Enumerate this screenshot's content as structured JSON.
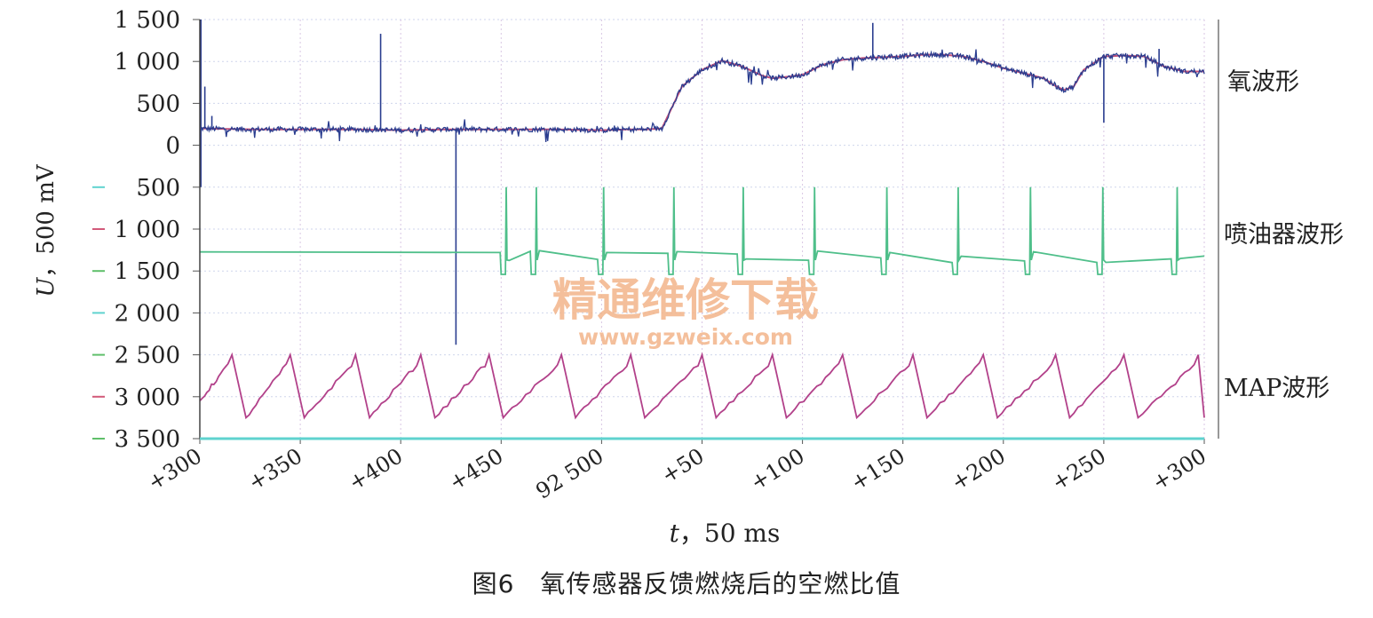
{
  "chart_data": {
    "type": "line",
    "title": "",
    "xlabel_var": "t",
    "xlabel_unit": "，50 ms",
    "ylabel_var": "U",
    "ylabel_unit": "，500 mV",
    "ylim": [
      -3500,
      1500
    ],
    "y_ticks": [
      {
        "value": 1500,
        "label": "1 500",
        "marker": false
      },
      {
        "value": 1000,
        "label": "1 000",
        "marker": false
      },
      {
        "value": 500,
        "label": "500",
        "marker": false
      },
      {
        "value": 0,
        "label": "0",
        "marker": false
      },
      {
        "value": -500,
        "label": "500",
        "marker": true,
        "marker_color": "#5fd3cf"
      },
      {
        "value": -1000,
        "label": "1 000",
        "marker": true,
        "marker_color": "#d25a7a"
      },
      {
        "value": -1500,
        "label": "1 500",
        "marker": true,
        "marker_color": "#5fbf6a"
      },
      {
        "value": -2000,
        "label": "2 000",
        "marker": true,
        "marker_color": "#5fd3cf"
      },
      {
        "value": -2500,
        "label": "2 500",
        "marker": true,
        "marker_color": "#5fbf6a"
      },
      {
        "value": -3000,
        "label": "3 000",
        "marker": true,
        "marker_color": "#d25a7a"
      },
      {
        "value": -3500,
        "label": "3 500",
        "marker": true,
        "marker_color": "#5fbf6a"
      }
    ],
    "x_ticks": [
      "+300",
      "+350",
      "+400",
      "+450",
      "92 500",
      "+50",
      "+100",
      "+150",
      "+200",
      "+250",
      "+300"
    ],
    "grid": true,
    "series": [
      {
        "name": "氧波形",
        "color": "#2a3d8f",
        "smooth_color": "#c2507a",
        "x": [
          0,
          0.05,
          0.1,
          0.15,
          0.2,
          0.25,
          0.3,
          0.35,
          0.4,
          0.43,
          0.445,
          0.46,
          0.47,
          0.48,
          0.5,
          0.52,
          0.54,
          0.56,
          0.57,
          0.58,
          0.6,
          0.62,
          0.64,
          0.66,
          0.68,
          0.7,
          0.72,
          0.74,
          0.76,
          0.78,
          0.8,
          0.82,
          0.84,
          0.845,
          0.85,
          0.86,
          0.87,
          0.88,
          0.9,
          0.92,
          0.94,
          0.96,
          0.98,
          1.0
        ],
        "values": [
          200,
          190,
          190,
          190,
          180,
          190,
          190,
          190,
          180,
          190,
          190,
          200,
          450,
          700,
          900,
          1010,
          940,
          830,
          800,
          810,
          840,
          960,
          1020,
          1040,
          1050,
          1060,
          1080,
          1080,
          1060,
          1000,
          920,
          860,
          800,
          760,
          720,
          660,
          700,
          900,
          1060,
          1070,
          1060,
          940,
          880,
          880
        ],
        "spikes": [
          [
            0.005,
            700
          ],
          [
            0.012,
            350
          ],
          [
            0.18,
            1330
          ],
          [
            0.255,
            -2380
          ],
          [
            0.67,
            1460
          ],
          [
            0.9,
            270
          ],
          [
            0.955,
            1150
          ]
        ]
      },
      {
        "name": "喷油器波形",
        "color": "#4fbf8a",
        "baseline": -1330,
        "pulse_x": [
          0.305,
          0.335,
          0.402,
          0.472,
          0.541,
          0.612,
          0.684,
          0.755,
          0.827,
          0.899,
          0.973
        ],
        "pulse_peak": -500,
        "pulse_dip": -1540
      },
      {
        "name": "MAP波形",
        "color": "#b2418a",
        "x_peaks": [
          0.032,
          0.09,
          0.155,
          0.22,
          0.288,
          0.36,
          0.429,
          0.5,
          0.57,
          0.64,
          0.71,
          0.78,
          0.852,
          0.92,
          0.994
        ],
        "peak": -2500,
        "trough": -3250,
        "start": -3050,
        "end": -2700
      }
    ]
  },
  "annotations": {
    "oxygen_label": "氧波形",
    "injector_label": "喷油器波形",
    "map_label": "MAP波形"
  },
  "watermark": {
    "main": "精通维修下载",
    "url": "www.gzweix.com"
  },
  "caption": "图6　氧传感器反馈燃烧后的空燃比值"
}
